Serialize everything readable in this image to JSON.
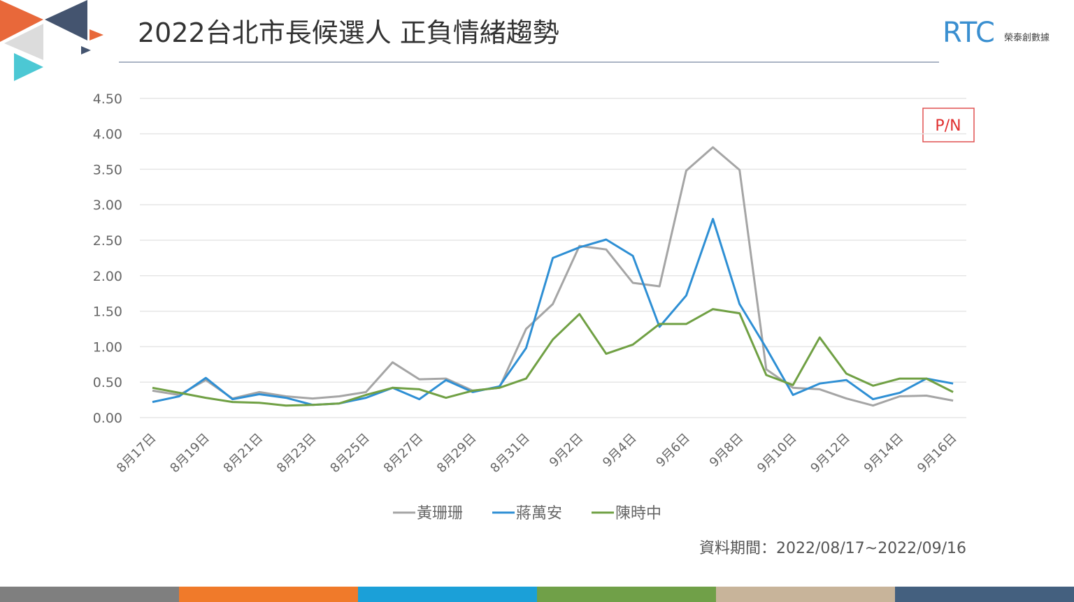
{
  "header": {
    "title": "2022台北市長候選人 正負情緒趨勢",
    "logo_text": "RTC",
    "logo_subtext": "榮泰創數據"
  },
  "badge": "P/N",
  "footnote": "資料期間：2022/08/17~2022/09/16",
  "bottom_bar_colors": [
    "#7f7f7f",
    "#f07a2a",
    "#1ba0d8",
    "#70a048",
    "#c8b49a",
    "#44607f"
  ],
  "chart_data": {
    "type": "line",
    "title": "2022台北市長候選人 正負情緒趨勢",
    "xlabel": "",
    "ylabel": "",
    "ylim": [
      0,
      4.5
    ],
    "y_ticks": [
      "0.00",
      "0.50",
      "1.00",
      "1.50",
      "2.00",
      "2.50",
      "3.00",
      "3.50",
      "4.00",
      "4.50"
    ],
    "x_tick_labels": [
      "8月17日",
      "8月19日",
      "8月21日",
      "8月23日",
      "8月25日",
      "8月27日",
      "8月29日",
      "8月31日",
      "9月2日",
      "9月4日",
      "9月6日",
      "9月8日",
      "9月10日",
      "9月12日",
      "9月14日",
      "9月16日"
    ],
    "x_tick_every": 2,
    "grid": true,
    "legend_position": "bottom",
    "series": [
      {
        "name": "黃珊珊",
        "color": "#a5a5a5",
        "values": [
          0.38,
          0.32,
          0.53,
          0.27,
          0.36,
          0.3,
          0.27,
          0.3,
          0.36,
          0.78,
          0.54,
          0.55,
          0.38,
          0.42,
          1.25,
          1.6,
          2.42,
          2.37,
          1.9,
          1.85,
          3.48,
          3.81,
          3.49,
          0.68,
          0.42,
          0.4,
          0.27,
          0.17,
          0.3,
          0.31,
          0.24
        ]
      },
      {
        "name": "蔣萬安",
        "color": "#2e8fd4",
        "values": [
          0.22,
          0.3,
          0.56,
          0.26,
          0.33,
          0.28,
          0.18,
          0.2,
          0.28,
          0.42,
          0.26,
          0.53,
          0.36,
          0.44,
          0.98,
          2.25,
          2.4,
          2.51,
          2.28,
          1.28,
          1.72,
          2.8,
          1.6,
          0.98,
          0.32,
          0.48,
          0.53,
          0.26,
          0.35,
          0.55,
          0.48
        ]
      },
      {
        "name": "陳時中",
        "color": "#70a044",
        "values": [
          0.42,
          0.35,
          0.28,
          0.22,
          0.21,
          0.17,
          0.18,
          0.2,
          0.32,
          0.42,
          0.4,
          0.28,
          0.38,
          0.42,
          0.55,
          1.1,
          1.46,
          0.9,
          1.03,
          1.32,
          1.32,
          1.53,
          1.47,
          0.6,
          0.46,
          1.13,
          0.62,
          0.45,
          0.55,
          0.55,
          0.36
        ]
      }
    ]
  }
}
